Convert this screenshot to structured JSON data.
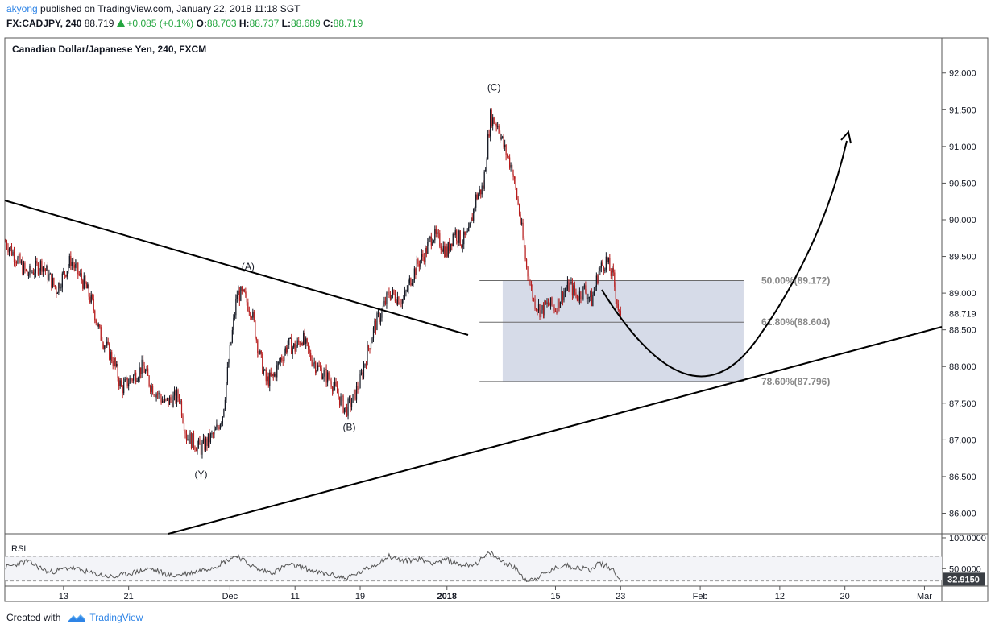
{
  "header": {
    "user": "akyong",
    "published": "published on TradingView.com, January 22, 2018 11:18 SGT",
    "symbol": "FX:CADJPY, 240",
    "last": "88.719",
    "change": "+0.085 (+0.1%)",
    "o_label": "O:",
    "o": "88.703",
    "h_label": "H:",
    "h": "88.737",
    "l_label": "L:",
    "l": "88.689",
    "c_label": "C:",
    "c": "88.719"
  },
  "footer": {
    "created": "Created with",
    "brand": "TradingView"
  },
  "colors": {
    "up": "#131722",
    "down": "#b71c1c",
    "box": "#d6dbe8",
    "accent": "#2e84e6"
  },
  "chart_data": {
    "type": "candlestick",
    "title": "Canadian Dollar/Japanese Yen, 240, FXCM",
    "ylim": [
      85.72,
      92.48
    ],
    "y_ticks": [
      "92.000",
      "91.500",
      "91.000",
      "90.500",
      "90.000",
      "89.500",
      "89.000",
      "88.500",
      "88.000",
      "87.500",
      "87.000",
      "86.500",
      "86.000"
    ],
    "x_ticks": [
      {
        "label": "13",
        "i": 8
      },
      {
        "label": "21",
        "i": 17
      },
      {
        "label": "Dec",
        "i": 31
      },
      {
        "label": "11",
        "i": 40
      },
      {
        "label": "19",
        "i": 49
      },
      {
        "label": "2018",
        "i": 61
      },
      {
        "label": "15",
        "i": 76
      },
      {
        "label": "23",
        "i": 85
      },
      {
        "label": "Feb",
        "i": 96
      },
      {
        "label": "12",
        "i": 107
      },
      {
        "label": "20",
        "i": 116
      },
      {
        "label": "Mar",
        "i": 127
      }
    ],
    "price_label": "88.719",
    "close_path": [
      [
        0,
        89.7
      ],
      [
        3,
        89.25
      ],
      [
        5,
        89.4
      ],
      [
        7,
        89.05
      ],
      [
        9,
        89.45
      ],
      [
        11,
        89.1
      ],
      [
        12,
        88.85
      ],
      [
        13,
        88.45
      ],
      [
        14,
        88.25
      ],
      [
        15,
        88.05
      ],
      [
        16,
        87.7
      ],
      [
        17,
        87.8
      ],
      [
        19,
        88.0
      ],
      [
        20,
        87.75
      ],
      [
        22,
        87.5
      ],
      [
        24,
        87.6
      ],
      [
        25,
        87.05
      ],
      [
        27,
        86.88
      ],
      [
        29,
        87.1
      ],
      [
        30,
        87.35
      ],
      [
        31,
        88.2
      ],
      [
        32,
        89.0
      ],
      [
        33,
        88.95
      ],
      [
        34,
        88.75
      ],
      [
        35,
        88.2
      ],
      [
        36,
        87.8
      ],
      [
        37,
        87.85
      ],
      [
        38,
        88.1
      ],
      [
        39,
        88.3
      ],
      [
        40,
        88.25
      ],
      [
        41,
        88.4
      ],
      [
        42,
        88.15
      ],
      [
        43,
        88.0
      ],
      [
        44,
        87.9
      ],
      [
        45,
        87.8
      ],
      [
        46,
        87.6
      ],
      [
        47,
        87.4
      ],
      [
        48,
        87.55
      ],
      [
        49,
        87.8
      ],
      [
        50,
        88.2
      ],
      [
        51,
        88.55
      ],
      [
        52,
        88.75
      ],
      [
        53,
        89.0
      ],
      [
        54,
        88.95
      ],
      [
        55,
        88.9
      ],
      [
        56,
        89.2
      ],
      [
        57,
        89.4
      ],
      [
        58,
        89.55
      ],
      [
        59,
        89.8
      ],
      [
        60,
        89.7
      ],
      [
        61,
        89.55
      ],
      [
        62,
        89.85
      ],
      [
        63,
        89.7
      ],
      [
        64,
        89.8
      ],
      [
        65,
        90.3
      ],
      [
        66,
        90.45
      ],
      [
        67,
        91.4
      ],
      [
        68,
        91.3
      ],
      [
        69,
        90.95
      ],
      [
        70,
        90.7
      ],
      [
        71,
        90.1
      ],
      [
        72,
        89.35
      ],
      [
        73,
        88.9
      ],
      [
        74,
        88.75
      ],
      [
        75,
        88.85
      ],
      [
        76,
        88.8
      ],
      [
        77,
        89.0
      ],
      [
        78,
        89.1
      ],
      [
        79,
        88.95
      ],
      [
        80,
        89.05
      ],
      [
        81,
        88.9
      ],
      [
        82,
        89.3
      ],
      [
        83,
        89.45
      ],
      [
        84,
        89.2
      ],
      [
        85,
        88.6
      ]
    ],
    "waves": [
      {
        "label": "(A)",
        "i": 33.5,
        "y": 89.32
      },
      {
        "label": "(B)",
        "i": 47.5,
        "y": 87.13
      },
      {
        "label": "(C)",
        "i": 67.5,
        "y": 91.76
      },
      {
        "label": "(Y)",
        "i": 27,
        "y": 86.49
      }
    ],
    "fib_levels": [
      {
        "label": "50.00%(89.172)",
        "price": 89.172
      },
      {
        "label": "61.80%(88.604)",
        "price": 88.604
      },
      {
        "label": "78.60%(87.796)",
        "price": 87.796
      }
    ],
    "rsi": {
      "label": "RSI",
      "ylim": [
        21.6,
        106.5
      ],
      "ticks": [
        "100.0000",
        "50.0000"
      ],
      "bands": [
        70,
        30
      ],
      "last_label": "32.9150",
      "path": [
        [
          0,
          52
        ],
        [
          3,
          62
        ],
        [
          6,
          44
        ],
        [
          9,
          52
        ],
        [
          12,
          42
        ],
        [
          15,
          36
        ],
        [
          17,
          42
        ],
        [
          20,
          50
        ],
        [
          23,
          38
        ],
        [
          26,
          44
        ],
        [
          29,
          54
        ],
        [
          31,
          66
        ],
        [
          32,
          72
        ],
        [
          33,
          62
        ],
        [
          35,
          48
        ],
        [
          37,
          44
        ],
        [
          39,
          56
        ],
        [
          41,
          52
        ],
        [
          43,
          44
        ],
        [
          45,
          40
        ],
        [
          47,
          34
        ],
        [
          49,
          44
        ],
        [
          51,
          56
        ],
        [
          53,
          70
        ],
        [
          55,
          62
        ],
        [
          57,
          66
        ],
        [
          59,
          60
        ],
        [
          61,
          64
        ],
        [
          63,
          56
        ],
        [
          65,
          58
        ],
        [
          67,
          76
        ],
        [
          68,
          66
        ],
        [
          70,
          54
        ],
        [
          71,
          44
        ],
        [
          72,
          30
        ],
        [
          73,
          34
        ],
        [
          75,
          44
        ],
        [
          77,
          56
        ],
        [
          79,
          52
        ],
        [
          81,
          48
        ],
        [
          82,
          60
        ],
        [
          83,
          54
        ],
        [
          84,
          48
        ],
        [
          85,
          32
        ]
      ]
    }
  }
}
